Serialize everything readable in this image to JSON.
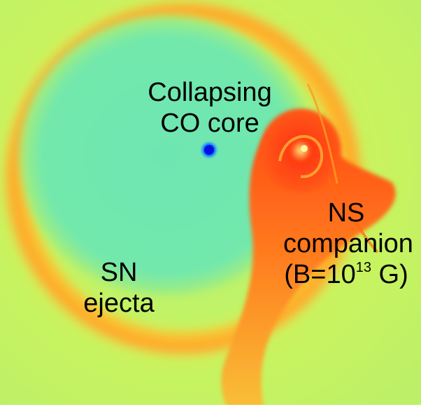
{
  "figure": {
    "labels": {
      "collapsing_core": [
        "Collapsing",
        "CO core"
      ],
      "ns_companion": {
        "line1": "NS",
        "line2": "companion",
        "field_prefix": "(B=10",
        "field_exponent": "13",
        "field_suffix": " G)"
      },
      "sn_ejecta": [
        "SN",
        "ejecta"
      ]
    },
    "colormap": [
      "#0000ff",
      "#1ea0ff",
      "#48e6b4",
      "#b4ff54",
      "#f0f028",
      "#ffa000",
      "#ff4a10",
      "#ff1a00"
    ]
  }
}
